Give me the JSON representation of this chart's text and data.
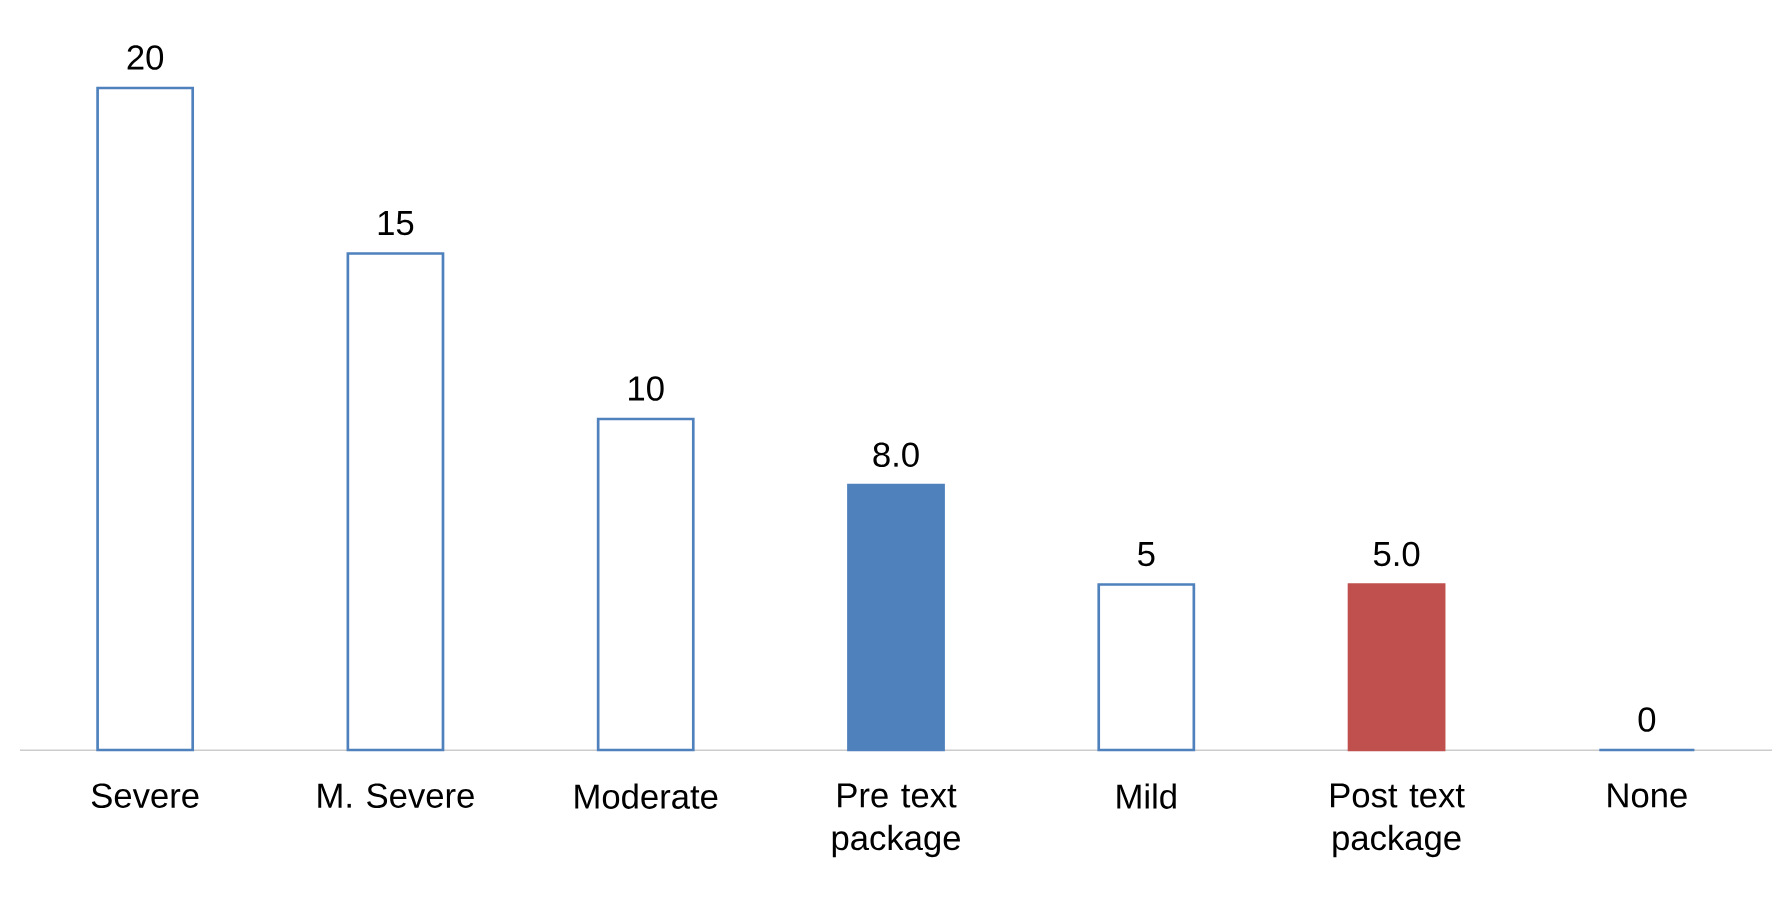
{
  "chart_data": {
    "type": "bar",
    "categories": [
      "Severe",
      "M. Severe",
      "Moderate",
      "Pre text package",
      "Mild",
      "Post text package",
      "None"
    ],
    "values": [
      20,
      15,
      10,
      8.0,
      5,
      5.0,
      0
    ],
    "value_labels": [
      "20",
      "15",
      "10",
      "8.0",
      "5",
      "5.0",
      "0"
    ],
    "color": "#4f81bd",
    "colors": [
      "#ffffff",
      "#ffffff",
      "#ffffff",
      "#4f81bd",
      "#ffffff",
      "#c0504d",
      "#ffffff"
    ]
  }
}
